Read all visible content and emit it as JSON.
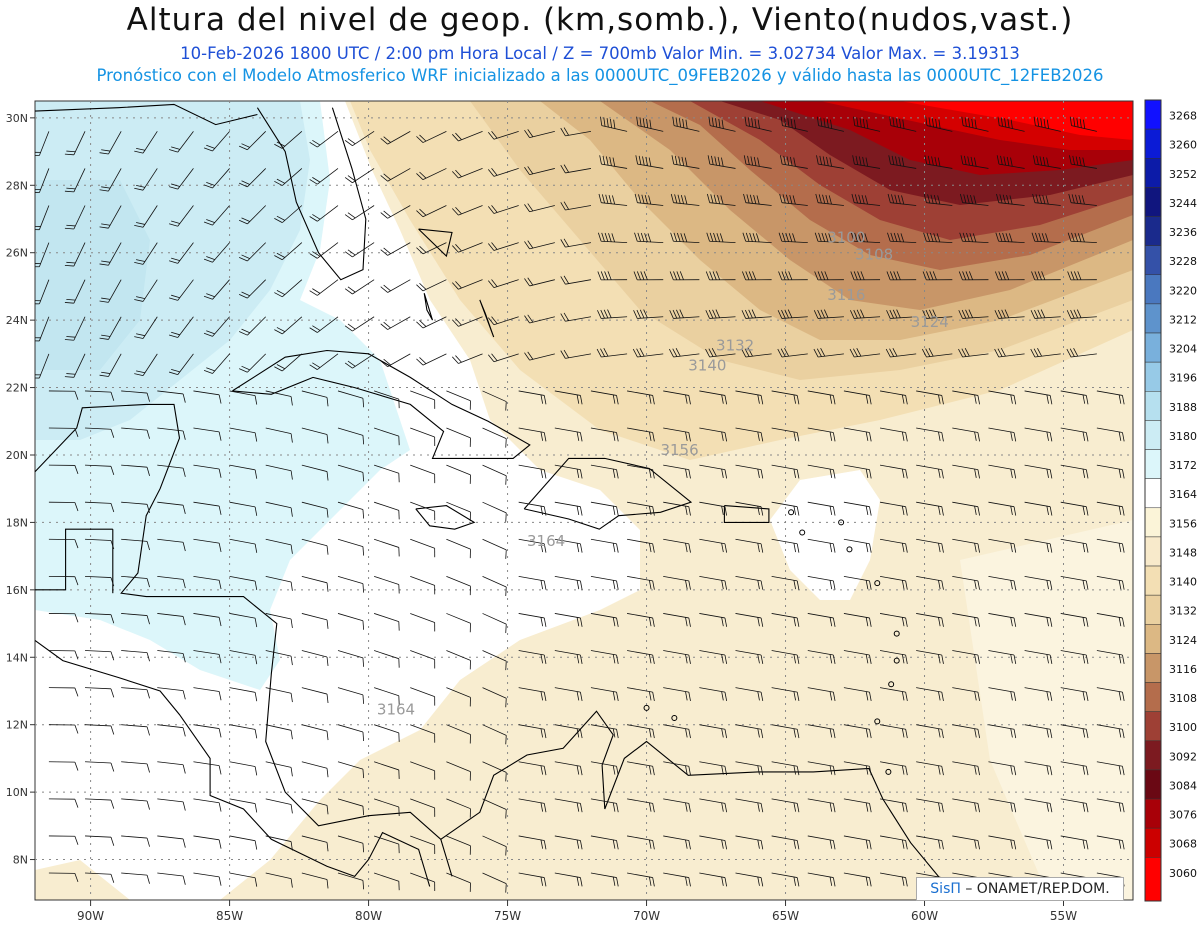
{
  "title": "Altura del nivel de geop. (km,somb.), Viento(nudos,vast.)",
  "subtitle_line1": "10-Feb-2026   1800 UTC / 2:00 pm Hora Local / Z = 700mb     Valor Min. = 3.02734   Valor Max. = 3.19313",
  "subtitle_line2": "Pronóstico con el Modelo Atmosferico WRF inicializado a las 0000UTC_09FEB2026 y válido hasta las  0000UTC_12FEB2026",
  "credit": {
    "brand": "SisΠ",
    "text": " – ONAMET/REP.DOM."
  },
  "chart_data": {
    "type": "heatmap",
    "variable": "700mb geopotential height (m) with wind barbs (knots)",
    "x_axis": {
      "ticks": [
        "90W",
        "85W",
        "80W",
        "75W",
        "70W",
        "65W",
        "60W",
        "55W"
      ],
      "values": [
        -90,
        -85,
        -80,
        -75,
        -70,
        -65,
        -60,
        -55
      ],
      "range": [
        -92,
        -52.5
      ]
    },
    "y_axis": {
      "ticks": [
        "8N",
        "10N",
        "12N",
        "14N",
        "16N",
        "18N",
        "20N",
        "22N",
        "24N",
        "26N",
        "28N",
        "30N"
      ],
      "values": [
        8,
        10,
        12,
        14,
        16,
        18,
        20,
        22,
        24,
        26,
        28,
        30
      ],
      "range": [
        6.8,
        30.5
      ]
    },
    "colorbar_levels": [
      3268,
      3260,
      3252,
      3244,
      3236,
      3228,
      3220,
      3212,
      3204,
      3196,
      3188,
      3180,
      3172,
      3164,
      3156,
      3148,
      3140,
      3132,
      3124,
      3116,
      3108,
      3100,
      3092,
      3084,
      3076,
      3068,
      3060
    ],
    "colorbar_colors": [
      "#1111ff",
      "#0b1bd6",
      "#0c1ba8",
      "#10157e",
      "#1a2a8c",
      "#3451a8",
      "#4a78bf",
      "#5e93cc",
      "#79b0dc",
      "#97cae7",
      "#b6e0ef",
      "#ccecf4",
      "#dcf6fa",
      "#ffffff",
      "#fbf4d8",
      "#f8eacb",
      "#f3dfb4",
      "#ead0a0",
      "#dcb884",
      "#c89668",
      "#b46d4c",
      "#9e4035",
      "#7c1a20",
      "#6a0814",
      "#a80008",
      "#cc0000",
      "#ff0000"
    ],
    "contour_labels": [
      {
        "value": "3100",
        "lon": -63.5,
        "lat": 26.3
      },
      {
        "value": "3108",
        "lon": -62.5,
        "lat": 25.8
      },
      {
        "value": "3116",
        "lon": -63.5,
        "lat": 24.6
      },
      {
        "value": "3124",
        "lon": -60.5,
        "lat": 23.8
      },
      {
        "value": "3132",
        "lon": -67.5,
        "lat": 23.1
      },
      {
        "value": "3140",
        "lon": -68.5,
        "lat": 22.5
      },
      {
        "value": "3156",
        "lon": -69.5,
        "lat": 20.0
      },
      {
        "value": "3164",
        "lon": -74.3,
        "lat": 17.3
      },
      {
        "value": "3164",
        "lon": -79.7,
        "lat": 12.3
      }
    ],
    "grid": true,
    "legend": "right colorbar"
  }
}
